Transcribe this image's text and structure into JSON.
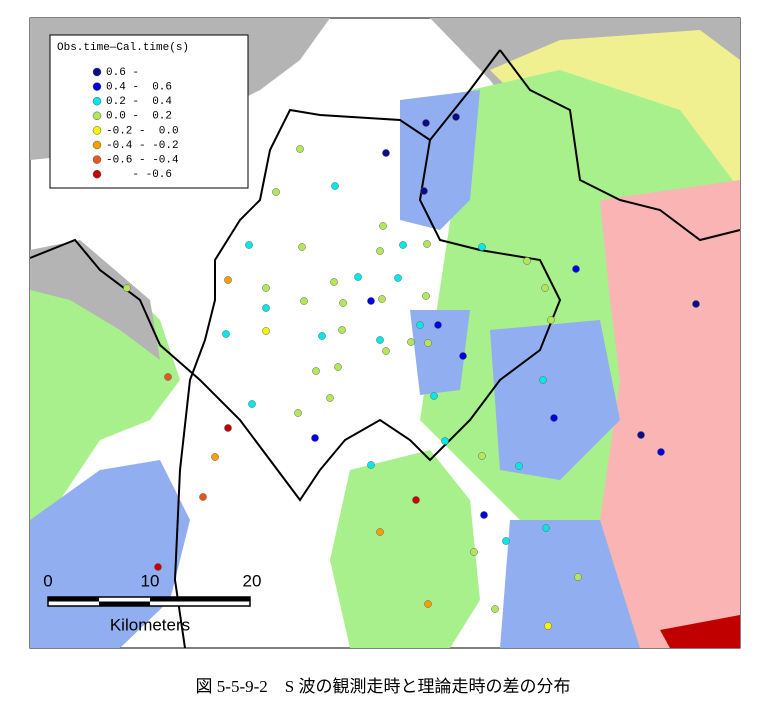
{
  "legend": {
    "title": "Obs.time—Cal.time(s)",
    "classes": [
      {
        "label": "0.6 -",
        "color": "#0a0a8c"
      },
      {
        "label": "0.4 -  0.6",
        "color": "#0000e0"
      },
      {
        "label": "0.2 -  0.4",
        "color": "#00e8e8"
      },
      {
        "label": "0.0 -  0.2",
        "color": "#b4e65a"
      },
      {
        "label": "-0.2 -  0.0",
        "color": "#f5f500"
      },
      {
        "label": "-0.4 - -0.2",
        "color": "#f5a000"
      },
      {
        "label": "-0.6 - -0.4",
        "color": "#e8561a"
      },
      {
        "label": "    - -0.6",
        "color": "#c40000"
      }
    ]
  },
  "scale_bar": {
    "ticks": [
      "0",
      "10",
      "20"
    ],
    "unit": "Kilometers"
  },
  "caption": "図 5-5-9-2　S 波の観測走時と理論走時の差の分布"
}
